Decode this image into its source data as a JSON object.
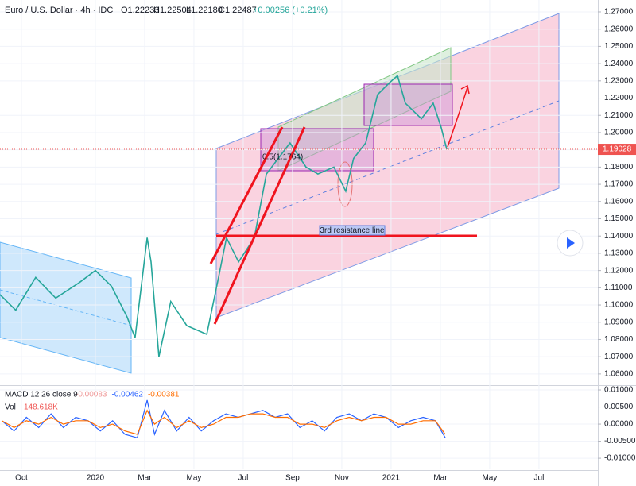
{
  "header": {
    "symbol": "Euro / U.S. Dollar · 4h · IDC",
    "open": "O1.22233",
    "high": "H1.22504",
    "low": "L1.22180",
    "close": "C1.22487",
    "change": "+0.00256 (+0.21%)"
  },
  "annotations": {
    "resistance": "3rd resistance line",
    "fib": "0.5(1.1764)"
  },
  "chart_data": [
    {
      "type": "line",
      "x": [
        -0.87,
        -0.23,
        0.58,
        1.39,
        2.35,
        3.0,
        3.65,
        4.29,
        4.61,
        5.1,
        5.26,
        5.58,
        6.06,
        6.71,
        7.52,
        8.0,
        8.32,
        8.81,
        9.45,
        9.94,
        10.42,
        10.9,
        11.55,
        12.03,
        12.68,
        13.16,
        13.48,
        13.97,
        14.45,
        14.94,
        15.26,
        15.58,
        16.23,
        16.71,
        17.03,
        17.26
      ],
      "series": [
        {
          "name": "EURUSD",
          "color": "#26a69a",
          "values": [
            1.106,
            1.097,
            1.116,
            1.104,
            1.113,
            1.12,
            1.111,
            1.093,
            1.081,
            1.139,
            1.125,
            1.07,
            1.102,
            1.088,
            1.083,
            1.116,
            1.139,
            1.125,
            1.139,
            1.176,
            1.185,
            1.194,
            1.18,
            1.176,
            1.18,
            1.166,
            1.185,
            1.194,
            1.222,
            1.229,
            1.233,
            1.217,
            1.208,
            1.217,
            1.203,
            1.19028
          ]
        }
      ],
      "last_price": 1.19028,
      "last_price_color": "#ef5350",
      "xlim": [
        -0.87,
        23.39
      ],
      "ylim": [
        1.0535,
        1.2769
      ],
      "xticks": [
        {
          "value": 0,
          "label": "Oct"
        },
        {
          "value": 3,
          "label": "2020"
        },
        {
          "value": 5,
          "label": "Mar"
        },
        {
          "value": 7,
          "label": "May"
        },
        {
          "value": 9,
          "label": "Jul"
        },
        {
          "value": 11,
          "label": "Sep"
        },
        {
          "value": 13,
          "label": "Nov"
        },
        {
          "value": 15,
          "label": "2021"
        },
        {
          "value": 17,
          "label": "Mar"
        },
        {
          "value": 19,
          "label": "May"
        },
        {
          "value": 21,
          "label": "Jul"
        }
      ],
      "yticks": [
        {
          "value": 1.27,
          "label": "1.27000"
        },
        {
          "value": 1.26,
          "label": "1.26000"
        },
        {
          "value": 1.25,
          "label": "1.25000"
        },
        {
          "value": 1.24,
          "label": "1.24000"
        },
        {
          "value": 1.23,
          "label": "1.23000"
        },
        {
          "value": 1.22,
          "label": "1.22000"
        },
        {
          "value": 1.21,
          "label": "1.21000"
        },
        {
          "value": 1.2,
          "label": "1.20000"
        },
        {
          "value": 1.19,
          "label": "1.19000"
        },
        {
          "value": 1.18,
          "label": "1.18000"
        },
        {
          "value": 1.17,
          "label": "1.17000"
        },
        {
          "value": 1.16,
          "label": "1.16000"
        },
        {
          "value": 1.15,
          "label": "1.15000"
        },
        {
          "value": 1.14,
          "label": "1.14000"
        },
        {
          "value": 1.13,
          "label": "1.13000"
        },
        {
          "value": 1.12,
          "label": "1.12000"
        },
        {
          "value": 1.11,
          "label": "1.11000"
        },
        {
          "value": 1.1,
          "label": "1.10000"
        },
        {
          "value": 1.09,
          "label": "1.09000"
        },
        {
          "value": 1.08,
          "label": "1.08000"
        },
        {
          "value": 1.07,
          "label": "1.07000"
        },
        {
          "value": 1.06,
          "label": "1.06000"
        }
      ],
      "grid": true
    },
    {
      "type": "line",
      "title": "MACD 12 26 close 9",
      "volume_label": "Vol",
      "volume_value": "148.618K",
      "indicator_values": [
        {
          "value": -0.00083,
          "color": "#ef9a9a"
        },
        {
          "value": -0.00462,
          "color": "#2962ff"
        },
        {
          "value": -0.00381,
          "color": "#ff6d00"
        }
      ],
      "x": [
        -0.8,
        -0.3,
        0.2,
        0.7,
        1.2,
        1.7,
        2.2,
        2.7,
        3.2,
        3.7,
        4.2,
        4.7,
        5.1,
        5.4,
        5.8,
        6.3,
        6.8,
        7.3,
        7.8,
        8.3,
        8.8,
        9.3,
        9.8,
        10.3,
        10.8,
        11.3,
        11.8,
        12.3,
        12.8,
        13.3,
        13.8,
        14.3,
        14.8,
        15.3,
        15.8,
        16.3,
        16.8,
        17.2
      ],
      "series": [
        {
          "name": "MACD",
          "color": "#2962ff",
          "values": [
            0.001,
            -0.002,
            0.002,
            -0.001,
            0.003,
            -0.001,
            0.002,
            0.001,
            -0.002,
            0.001,
            -0.003,
            -0.004,
            0.007,
            -0.003,
            0.004,
            -0.002,
            0.002,
            -0.002,
            0.001,
            0.003,
            0.002,
            0.003,
            0.004,
            0.002,
            0.003,
            -0.001,
            0.001,
            -0.002,
            0.002,
            0.003,
            0.001,
            0.003,
            0.002,
            -0.001,
            0.001,
            0.002,
            0.001,
            -0.004
          ]
        },
        {
          "name": "Signal",
          "color": "#ff6d00",
          "values": [
            0.001,
            -0.001,
            0.001,
            0.0,
            0.002,
            0.0,
            0.001,
            0.001,
            -0.001,
            0.0,
            -0.002,
            -0.003,
            0.004,
            0.0,
            0.002,
            -0.001,
            0.001,
            -0.001,
            0.0,
            0.002,
            0.002,
            0.003,
            0.003,
            0.002,
            0.002,
            0.0,
            0.0,
            -0.001,
            0.001,
            0.002,
            0.001,
            0.002,
            0.002,
            0.0,
            0.0,
            0.001,
            0.001,
            -0.003
          ]
        }
      ],
      "xlim": [
        -0.87,
        23.39
      ],
      "ylim": [
        -0.013,
        0.0114
      ],
      "yticks": [
        {
          "value": 0.01,
          "label": "0.01000"
        },
        {
          "value": 0.005,
          "label": "0.00500"
        },
        {
          "value": 0,
          "label": "0.00000"
        },
        {
          "value": -0.005,
          "label": "-0.00500"
        },
        {
          "value": -0.01,
          "label": "-0.01000"
        }
      ],
      "grid": true
    }
  ]
}
